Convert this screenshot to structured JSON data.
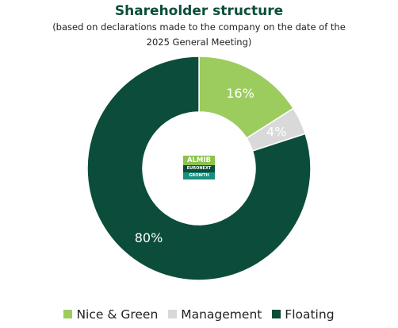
{
  "chart_data": {
    "type": "pie",
    "title": "Shareholder structure",
    "subtitle_line1": "(based on declarations made to the company on the date of the",
    "subtitle_line2": "2025 General Meeting)",
    "categories": [
      "Nice & Green",
      "Management",
      "Floating"
    ],
    "values": [
      16,
      4,
      80
    ],
    "labels": [
      "16%",
      "4%",
      "80%"
    ],
    "colors": [
      "#9ccc5e",
      "#d9d9d9",
      "#0b4d3a"
    ],
    "label_colors": [
      "#ffffff",
      "#ffffff",
      "#ffffff"
    ],
    "donut": true,
    "legend_position": "bottom"
  },
  "logo": {
    "top": "ALMIB",
    "middle": "EURONEXT",
    "bottom": "GROWTH"
  }
}
